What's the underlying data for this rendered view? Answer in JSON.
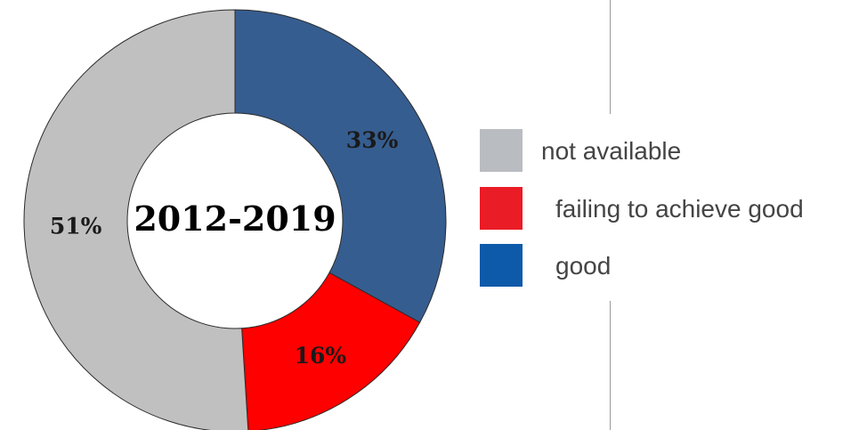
{
  "chart_data": {
    "type": "pie",
    "center_label": "2012-2019",
    "slices": [
      {
        "name": "good",
        "value": 33,
        "label": "33%",
        "color": "#365d8f"
      },
      {
        "name": "failing to achieve good",
        "value": 16,
        "label": "16%",
        "color": "#ff0000"
      },
      {
        "name": "not available",
        "value": 51,
        "label": "51%",
        "color": "#c0c0c0"
      }
    ],
    "legend": [
      {
        "label": "not available",
        "color": "#b9bcc1"
      },
      {
        "label": "failing to achieve good",
        "color": "#ea1c26"
      },
      {
        "label": "good",
        "color": "#0e5aaa"
      }
    ],
    "legend_position": "right"
  }
}
